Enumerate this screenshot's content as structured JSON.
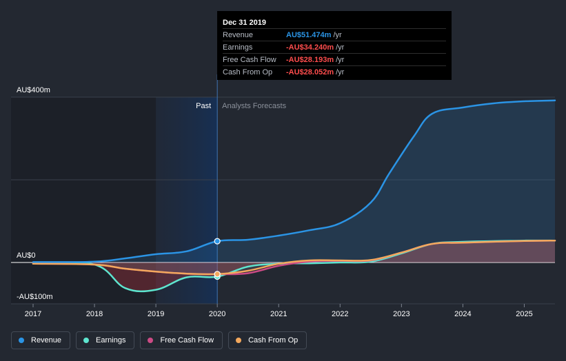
{
  "chart_data": {
    "type": "line",
    "x_unit": "year",
    "xlim": [
      2017,
      2025.5
    ],
    "ylim": [
      -100,
      400
    ],
    "y_ticks": [
      {
        "value": 400,
        "label": "AU$400m"
      },
      {
        "value": 0,
        "label": "AU$0"
      },
      {
        "value": -100,
        "label": "-AU$100m"
      }
    ],
    "x_ticks": [
      2017,
      2018,
      2019,
      2020,
      2021,
      2022,
      2023,
      2024,
      2025
    ],
    "past_label": "Past",
    "forecast_label": "Analysts Forecasts",
    "divider_x": 2020,
    "series": [
      {
        "name": "Revenue",
        "color": "#2b94e5",
        "points": [
          [
            2017,
            1
          ],
          [
            2018,
            2
          ],
          [
            2018.5,
            10
          ],
          [
            2019,
            20
          ],
          [
            2019.5,
            27
          ],
          [
            2020,
            51.474
          ],
          [
            2020.5,
            55
          ],
          [
            2021,
            65
          ],
          [
            2021.5,
            78
          ],
          [
            2022,
            95
          ],
          [
            2022.5,
            145
          ],
          [
            2022.8,
            215
          ],
          [
            2023.2,
            305
          ],
          [
            2023.5,
            360
          ],
          [
            2024,
            375
          ],
          [
            2024.5,
            385
          ],
          [
            2025,
            390
          ],
          [
            2025.5,
            392
          ]
        ]
      },
      {
        "name": "Earnings",
        "color": "#5ee5cf",
        "points": [
          [
            2017,
            -3
          ],
          [
            2018,
            -5
          ],
          [
            2018.5,
            -62
          ],
          [
            2019,
            -66
          ],
          [
            2019.5,
            -36
          ],
          [
            2020,
            -34.24
          ],
          [
            2020.5,
            -10
          ],
          [
            2021,
            -3
          ],
          [
            2021.5,
            -2
          ],
          [
            2022,
            0
          ],
          [
            2022.5,
            2
          ],
          [
            2023,
            22
          ],
          [
            2023.5,
            45
          ],
          [
            2024,
            50
          ],
          [
            2025,
            53
          ],
          [
            2025.5,
            53
          ]
        ]
      },
      {
        "name": "Free Cash Flow",
        "color": "#cc4b85",
        "points": [
          [
            2017,
            -3
          ],
          [
            2018,
            -5
          ],
          [
            2018.5,
            -15
          ],
          [
            2019,
            -22
          ],
          [
            2019.5,
            -27
          ],
          [
            2020,
            -28.193
          ],
          [
            2020.5,
            -26
          ],
          [
            2021,
            -8
          ],
          [
            2021.5,
            2
          ],
          [
            2022,
            4
          ],
          [
            2022.5,
            5
          ],
          [
            2023,
            24
          ],
          [
            2023.5,
            45
          ],
          [
            2024,
            48
          ],
          [
            2025,
            52
          ],
          [
            2025.5,
            53
          ]
        ]
      },
      {
        "name": "Cash From Op",
        "color": "#f3a85d",
        "points": [
          [
            2017,
            -3
          ],
          [
            2018,
            -5
          ],
          [
            2018.5,
            -15
          ],
          [
            2019,
            -22
          ],
          [
            2019.5,
            -27
          ],
          [
            2020,
            -28.052
          ],
          [
            2020.5,
            -20
          ],
          [
            2021,
            -3
          ],
          [
            2021.5,
            5
          ],
          [
            2022,
            5
          ],
          [
            2022.5,
            6
          ],
          [
            2023,
            24
          ],
          [
            2023.5,
            45
          ],
          [
            2024,
            48
          ],
          [
            2025,
            52
          ],
          [
            2025.5,
            53
          ]
        ]
      }
    ]
  },
  "tooltip": {
    "date": "Dec 31 2019",
    "rows": [
      {
        "label": "Revenue",
        "value": "AU$51.474m",
        "unit": "/yr",
        "color": "#2b94e5"
      },
      {
        "label": "Earnings",
        "value": "-AU$34.240m",
        "unit": "/yr",
        "color": "#ff4d4d"
      },
      {
        "label": "Free Cash Flow",
        "value": "-AU$28.193m",
        "unit": "/yr",
        "color": "#ff4d4d"
      },
      {
        "label": "Cash From Op",
        "value": "-AU$28.052m",
        "unit": "/yr",
        "color": "#ff4d4d"
      }
    ]
  },
  "legend": [
    {
      "label": "Revenue",
      "color": "#2b94e5"
    },
    {
      "label": "Earnings",
      "color": "#5ee5cf"
    },
    {
      "label": "Free Cash Flow",
      "color": "#cc4b85"
    },
    {
      "label": "Cash From Op",
      "color": "#f3a85d"
    }
  ]
}
